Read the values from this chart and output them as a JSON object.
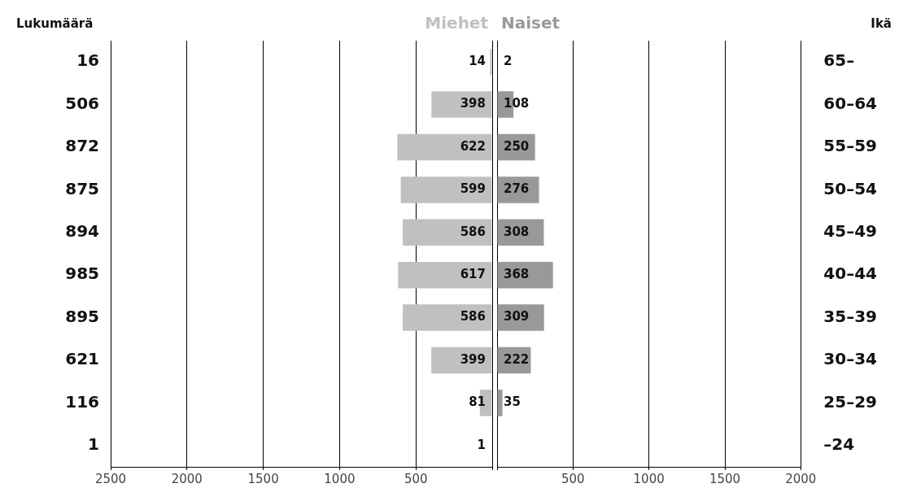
{
  "chart_data": [
    {
      "type": "bar",
      "orientation": "horizontal",
      "tick_labels": "x",
      "grid": "x",
      "legend": "top",
      "data_labels": true,
      "categories": [
        null,
        null,
        null,
        null,
        null,
        null,
        null,
        null,
        null,
        null
      ],
      "series": [
        {
          "name": "Miehet",
          "color": "#c0c0c0",
          "values": [
            14,
            398,
            622,
            599,
            586,
            617,
            586,
            399,
            81,
            1
          ]
        }
      ],
      "xlim": [
        2500,
        0
      ],
      "xticks": [
        2500,
        2000,
        1500,
        1000,
        500,
        {
          "value": 0,
          "label": null
        }
      ],
      "annotations": [
        "Lukumäärä",
        "16",
        "506",
        "872",
        "875",
        "894",
        "985",
        "895",
        "621",
        "116",
        "1"
      ]
    },
    {
      "type": "bar",
      "orientation": "horizontal",
      "grid": "x",
      "legend": "top",
      "ylabel": "Ikä",
      "categories": [
        "65–",
        "60–64",
        "55–59",
        "50–54",
        "45–49",
        "40–44",
        "35–39",
        "30–34",
        "25–29",
        "–24"
      ],
      "series": [
        {
          "name": "Naiset",
          "color": "#999999",
          "values": [
            2,
            108,
            250,
            276,
            308,
            368,
            309,
            222,
            35,
            0
          ],
          "value_labels": [
            "2",
            "108",
            "250",
            "276",
            "308",
            "368",
            "309",
            "222",
            "35",
            null
          ]
        }
      ],
      "xlim": [
        0,
        2000
      ],
      "xticks": [
        {
          "value": 0,
          "label": null
        },
        500,
        1000,
        1500,
        2000
      ]
    }
  ]
}
